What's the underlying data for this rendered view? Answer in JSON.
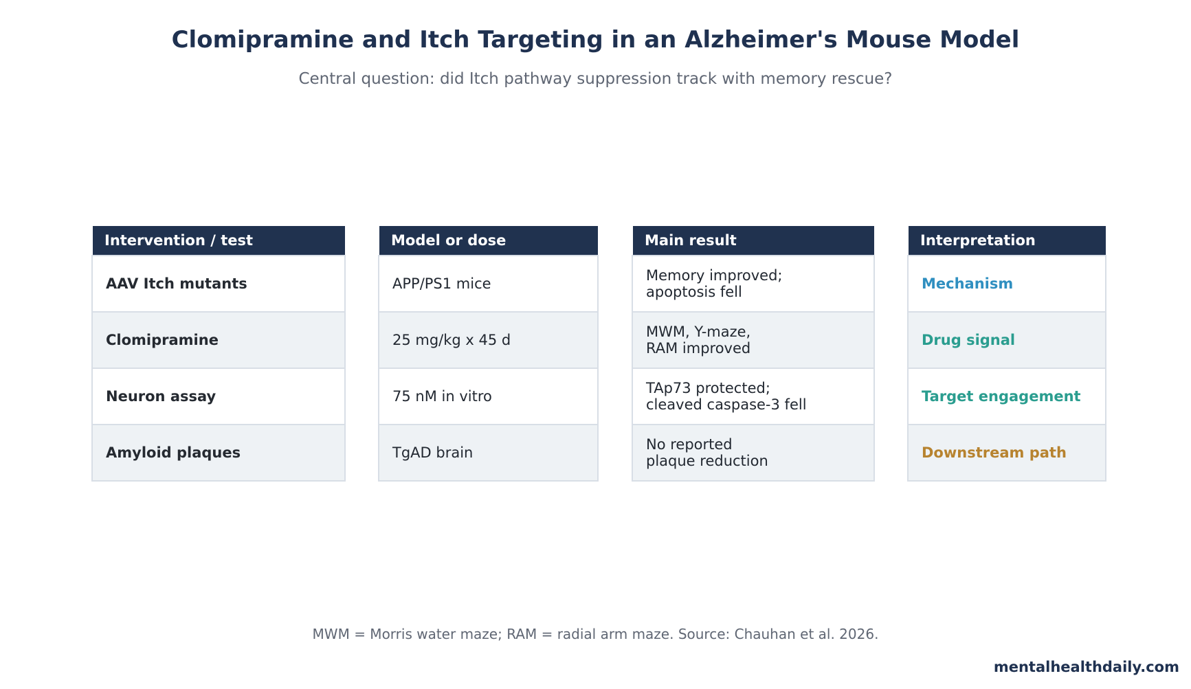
{
  "chart_data": {
    "type": "table",
    "title": "Clomipramine and Itch Targeting in an Alzheimer's Mouse Model",
    "subtitle": "Central question: did Itch pathway suppression track with memory rescue?",
    "columns": [
      "Intervention / test",
      "Model or dose",
      "Main result",
      "Interpretation"
    ],
    "rows": [
      {
        "intervention": "AAV Itch mutants",
        "model": "APP/PS1 mice",
        "result": "Memory improved;\napoptosis fell",
        "interpretation": "Mechanism",
        "interpretation_color": "#2f8fc0"
      },
      {
        "intervention": "Clomipramine",
        "model": "25 mg/kg x 45 d",
        "result": "MWM, Y-maze,\nRAM improved",
        "interpretation": "Drug signal",
        "interpretation_color": "#2a9d8f"
      },
      {
        "intervention": "Neuron assay",
        "model": "75 nM in vitro",
        "result": "TAp73 protected;\ncleaved caspase-3 fell",
        "interpretation": "Target engagement",
        "interpretation_color": "#2a9d8f"
      },
      {
        "intervention": "Amyloid plaques",
        "model": "TgAD brain",
        "result": "No reported\nplaque reduction",
        "interpretation": "Downstream path",
        "interpretation_color": "#b7832f"
      }
    ],
    "footnote": "MWM = Morris water maze; RAM = radial arm maze. Source: Chauhan et al. 2026.",
    "header_color": "#20324f",
    "alt_row_color": "#eef2f5"
  },
  "brand": "mentalhealthdaily.com"
}
